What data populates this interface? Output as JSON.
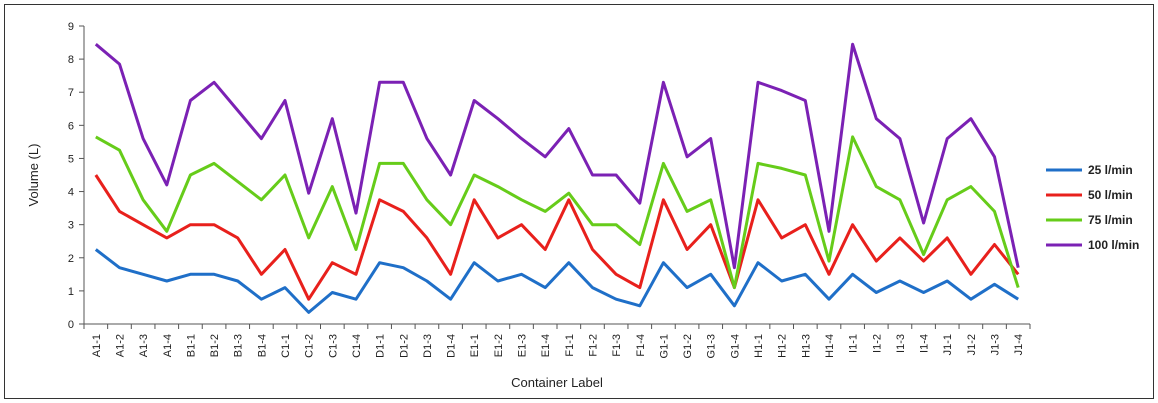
{
  "chart_data": {
    "type": "line",
    "xlabel": "Container Label",
    "ylabel": "Volume (L)",
    "ylim": [
      0,
      9
    ],
    "yticks": [
      0,
      1,
      2,
      3,
      4,
      5,
      6,
      7,
      8,
      9
    ],
    "grid": false,
    "legend_position": "right",
    "categories": [
      "A1-1",
      "A1-2",
      "A1-3",
      "A1-4",
      "B1-1",
      "B1-2",
      "B1-3",
      "B1-4",
      "C1-1",
      "C1-2",
      "C1-3",
      "C1-4",
      "D1-1",
      "D1-2",
      "D1-3",
      "D1-4",
      "E1-1",
      "E1-2",
      "E1-3",
      "E1-4",
      "F1-1",
      "F1-2",
      "F1-3",
      "F1-4",
      "G1-1",
      "G1-2",
      "G1-3",
      "G1-4",
      "H1-1",
      "H1-2",
      "H1-3",
      "H1-4",
      "I1-1",
      "I1-2",
      "I1-3",
      "I1-4",
      "J1-1",
      "J1-2",
      "J1-3",
      "J1-4"
    ],
    "series": [
      {
        "name": "25 l/min",
        "color": "#1f6fc8",
        "values": [
          2.25,
          1.7,
          1.5,
          1.3,
          1.5,
          1.5,
          1.3,
          0.75,
          1.1,
          0.35,
          0.95,
          0.75,
          1.85,
          1.7,
          1.3,
          0.75,
          1.85,
          1.3,
          1.5,
          1.1,
          1.85,
          1.1,
          0.75,
          0.55,
          1.85,
          1.1,
          1.5,
          0.55,
          1.85,
          1.3,
          1.5,
          0.75,
          1.5,
          0.95,
          1.3,
          0.95,
          1.3,
          0.75,
          1.2,
          0.75
        ]
      },
      {
        "name": "50 l/min",
        "color": "#e8201c",
        "values": [
          4.5,
          3.4,
          3.0,
          2.6,
          3.0,
          3.0,
          2.6,
          1.5,
          2.25,
          0.75,
          1.85,
          1.5,
          3.75,
          3.4,
          2.6,
          1.5,
          3.75,
          2.6,
          3.0,
          2.25,
          3.75,
          2.25,
          1.5,
          1.1,
          3.75,
          2.25,
          3.0,
          1.1,
          3.75,
          2.6,
          3.0,
          1.5,
          3.0,
          1.9,
          2.6,
          1.9,
          2.6,
          1.5,
          2.4,
          1.5
        ]
      },
      {
        "name": "75 l/min",
        "color": "#66cc1a",
        "values": [
          5.65,
          5.25,
          3.75,
          2.8,
          4.5,
          4.85,
          4.3,
          3.75,
          4.5,
          2.6,
          4.15,
          2.25,
          4.85,
          4.85,
          3.75,
          3.0,
          4.5,
          4.15,
          3.75,
          3.4,
          3.95,
          3.0,
          3.0,
          2.4,
          4.85,
          3.4,
          3.75,
          1.1,
          4.85,
          4.7,
          4.5,
          1.9,
          5.65,
          4.15,
          3.75,
          2.1,
          3.75,
          4.15,
          3.4,
          1.1
        ]
      },
      {
        "name": "100 l/min",
        "color": "#7b21b4",
        "values": [
          8.45,
          7.85,
          5.6,
          4.2,
          6.75,
          7.3,
          6.45,
          5.6,
          6.75,
          3.95,
          6.2,
          3.35,
          7.3,
          7.3,
          5.6,
          4.5,
          6.75,
          6.2,
          5.6,
          5.05,
          5.9,
          4.5,
          4.5,
          3.65,
          7.3,
          5.05,
          5.6,
          1.7,
          7.3,
          7.05,
          6.75,
          2.8,
          8.45,
          6.2,
          5.6,
          3.05,
          5.6,
          6.2,
          5.05,
          1.7
        ]
      }
    ]
  }
}
